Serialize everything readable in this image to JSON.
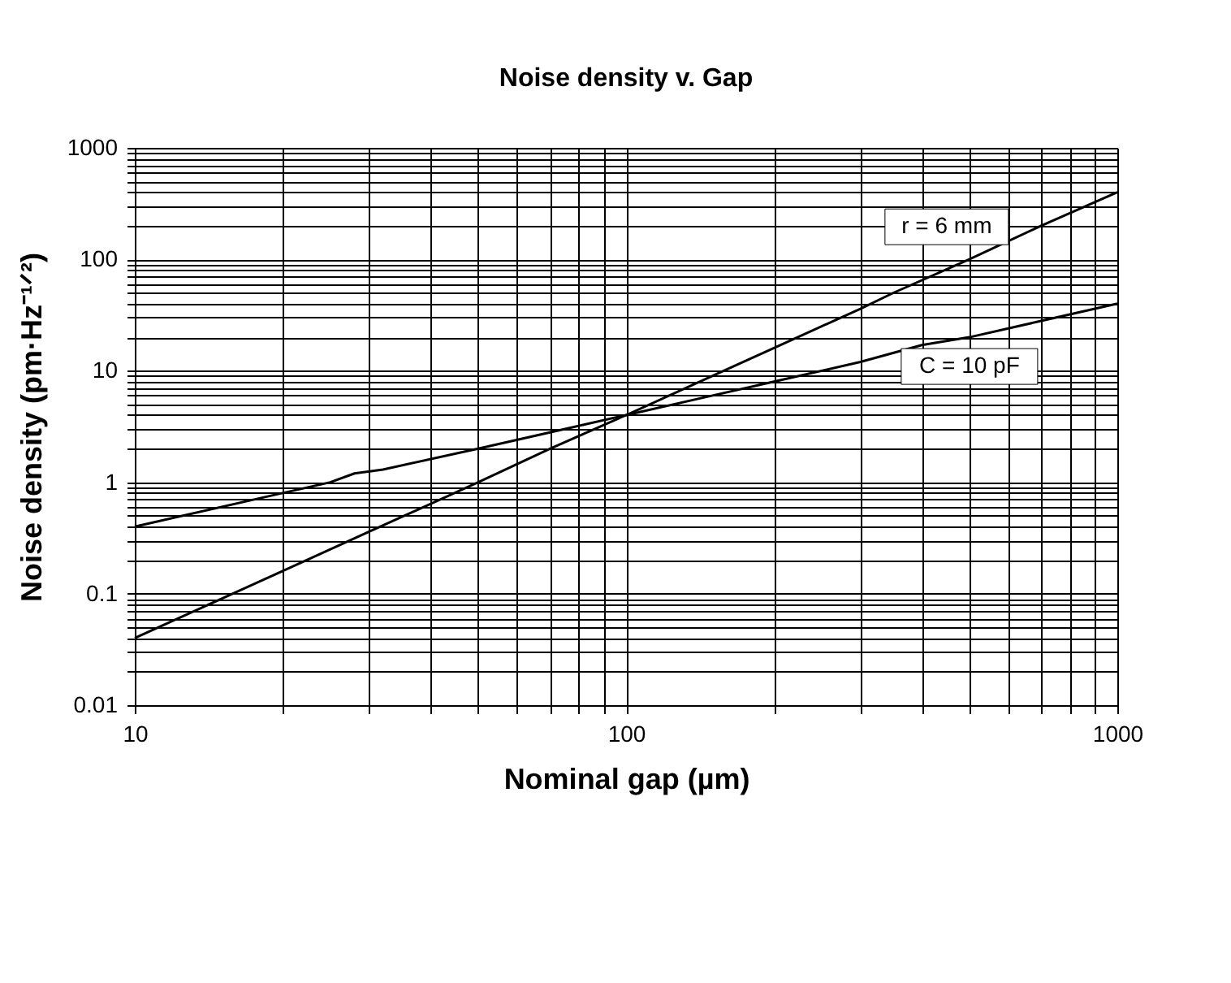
{
  "chart_data": {
    "type": "line",
    "title": "Noise density v. Gap",
    "xlabel": "Nominal gap  (µm)",
    "ylabel": "Noise density  (pm·Hz⁻¹ᐟ²)",
    "log": "xy",
    "grid": true,
    "legend": false,
    "marker": "none",
    "line_style": "solid",
    "xlim": [
      10,
      1000
    ],
    "ylim": [
      0.01,
      1000
    ],
    "xticks": [
      10,
      {
        "value": 20,
        "label": null
      },
      {
        "value": 30,
        "label": null
      },
      {
        "value": 40,
        "label": null
      },
      {
        "value": 50,
        "label": null
      },
      {
        "value": 60,
        "label": null
      },
      {
        "value": 70,
        "label": null
      },
      {
        "value": 80,
        "label": null
      },
      {
        "value": 90,
        "label": null
      },
      100,
      {
        "value": 200,
        "label": null
      },
      {
        "value": 300,
        "label": null
      },
      {
        "value": 400,
        "label": null
      },
      {
        "value": 500,
        "label": null
      },
      {
        "value": 600,
        "label": null
      },
      {
        "value": 700,
        "label": null
      },
      {
        "value": 800,
        "label": null
      },
      {
        "value": 900,
        "label": null
      },
      1000
    ],
    "yticks": [
      0.01,
      {
        "value": 0.02,
        "label": null
      },
      {
        "value": 0.03,
        "label": null
      },
      {
        "value": 0.04,
        "label": null
      },
      {
        "value": 0.05,
        "label": null
      },
      {
        "value": 0.06,
        "label": null
      },
      {
        "value": 0.07,
        "label": null
      },
      {
        "value": 0.08,
        "label": null
      },
      {
        "value": 0.09,
        "label": null
      },
      0.1,
      {
        "value": 0.2,
        "label": null
      },
      {
        "value": 0.3,
        "label": null
      },
      {
        "value": 0.4,
        "label": null
      },
      {
        "value": 0.5,
        "label": null
      },
      {
        "value": 0.6,
        "label": null
      },
      {
        "value": 0.7,
        "label": null
      },
      {
        "value": 0.8,
        "label": null
      },
      {
        "value": 0.9,
        "label": null
      },
      1,
      {
        "value": 2,
        "label": null
      },
      {
        "value": 3,
        "label": null
      },
      {
        "value": 4,
        "label": null
      },
      {
        "value": 5,
        "label": null
      },
      {
        "value": 6,
        "label": null
      },
      {
        "value": 7,
        "label": null
      },
      {
        "value": 8,
        "label": null
      },
      {
        "value": 9,
        "label": null
      },
      10,
      {
        "value": 20,
        "label": null
      },
      {
        "value": 30,
        "label": null
      },
      {
        "value": 40,
        "label": null
      },
      {
        "value": 50,
        "label": null
      },
      {
        "value": 60,
        "label": null
      },
      {
        "value": 70,
        "label": null
      },
      {
        "value": 80,
        "label": null
      },
      {
        "value": 90,
        "label": null
      },
      100,
      {
        "value": 200,
        "label": null
      },
      {
        "value": 300,
        "label": null
      },
      {
        "value": 400,
        "label": null
      },
      {
        "value": 500,
        "label": null
      },
      {
        "value": 600,
        "label": null
      },
      {
        "value": 700,
        "label": null
      },
      {
        "value": 800,
        "label": null
      },
      {
        "value": 900,
        "label": null
      },
      1000
    ],
    "series": [
      {
        "name": "r = 6 mm",
        "color": "#000000",
        "x": [
          10,
          15,
          20,
          30,
          50,
          70,
          100,
          150,
          200,
          300,
          350,
          500,
          700,
          1000
        ],
        "values": [
          0.04,
          0.09,
          0.16,
          0.36,
          1,
          2,
          4,
          9,
          16,
          36,
          50,
          100,
          200,
          400
        ]
      },
      {
        "name": "C = 10 pF",
        "color": "#000000",
        "x": [
          10,
          20,
          25,
          28,
          32,
          50,
          70,
          100,
          150,
          200,
          300,
          400,
          500,
          700,
          1000
        ],
        "values": [
          0.4,
          0.8,
          1.0,
          1.2,
          1.3,
          2,
          2.8,
          4,
          6,
          8,
          12,
          17,
          20,
          28,
          40
        ]
      }
    ]
  }
}
